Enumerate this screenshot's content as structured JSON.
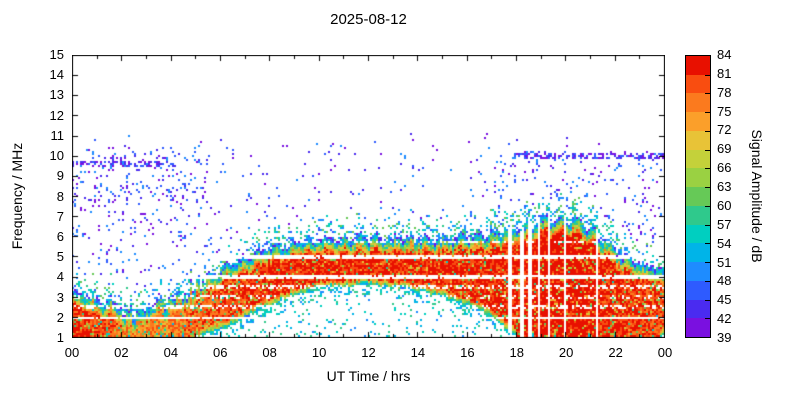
{
  "title": "2025-08-12",
  "colorbar": {
    "label": "Signal Amplitude / dB",
    "segment_colors_bottom_to_top": [
      "#7a10e0",
      "#4a2bf0",
      "#2e5bff",
      "#1e8cff",
      "#00b4e8",
      "#00cfc0",
      "#2fc98c",
      "#66c957",
      "#9ad142",
      "#c4d13a",
      "#e8c337",
      "#fb9f2a",
      "#fb7a1e",
      "#f94d10",
      "#e81000"
    ]
  },
  "chart_data": {
    "type": "heatmap",
    "title": "2025-08-12",
    "xlabel": "UT Time / hrs",
    "ylabel": "Frequency / MHz",
    "xlim": [
      0,
      24
    ],
    "ylim": [
      1,
      15
    ],
    "x_tick_labels": [
      "00",
      "02",
      "04",
      "06",
      "08",
      "10",
      "12",
      "14",
      "16",
      "18",
      "20",
      "22",
      "00"
    ],
    "y_tick_labels": [
      "1",
      "2",
      "3",
      "4",
      "5",
      "6",
      "7",
      "8",
      "9",
      "10",
      "11",
      "12",
      "13",
      "14",
      "15"
    ],
    "colorbar_label": "Signal Amplitude / dB",
    "colorbar_ticks": [
      39,
      42,
      45,
      48,
      51,
      54,
      57,
      60,
      63,
      66,
      69,
      72,
      75,
      78,
      81,
      84
    ],
    "band_top_mhz": {
      "t": [
        0,
        0.8,
        1.6,
        2.4,
        3.2,
        4,
        5,
        6,
        7,
        8,
        9,
        10,
        11,
        12,
        13,
        14,
        15,
        16,
        17,
        17.8,
        18.6,
        19.2,
        19.8,
        20.5,
        21,
        21.6,
        22.3,
        23,
        24
      ],
      "f": [
        3.4,
        3.1,
        2.7,
        2.3,
        2.6,
        2.9,
        3.6,
        4.4,
        5.0,
        5.5,
        5.7,
        5.9,
        6.0,
        6.0,
        5.9,
        6.0,
        5.9,
        6.1,
        6.2,
        6.4,
        6.6,
        6.9,
        7.0,
        6.8,
        6.4,
        5.8,
        5.1,
        4.7,
        4.4
      ]
    },
    "band_bottom_mhz": {
      "t": [
        0,
        5,
        6,
        7,
        8,
        9,
        10,
        12,
        13.5,
        15,
        16,
        16.8,
        17.4,
        18,
        24
      ],
      "f": [
        1.0,
        1.0,
        1.4,
        2.0,
        2.6,
        3.1,
        3.4,
        3.6,
        3.4,
        3.0,
        2.6,
        2.2,
        1.6,
        1.0,
        1.0
      ]
    },
    "band_amplitude_db": {
      "t": [
        0,
        1.5,
        2.2,
        3,
        4,
        5,
        6,
        8,
        12,
        16,
        18,
        19,
        20.5,
        21.5,
        22.5,
        24
      ],
      "db": [
        82,
        80,
        76,
        75,
        76,
        78,
        80,
        82,
        82,
        82,
        82,
        84,
        84,
        82,
        81,
        80
      ]
    },
    "white_lines_mhz": [
      {
        "f": 2.0,
        "p": 0.95
      },
      {
        "f": 2.5,
        "p": 0.5
      },
      {
        "f": 3.0,
        "p": 0.35
      },
      {
        "f": 3.5,
        "p": 0.5
      },
      {
        "f": 4.0,
        "p": 0.9
      },
      {
        "f": 5.0,
        "p": 0.9
      },
      {
        "f": 5.75,
        "p": 0.4
      }
    ],
    "data_gaps_t": [
      [
        17.68,
        17.8
      ],
      [
        18.12,
        18.26
      ],
      [
        18.48,
        18.62
      ],
      [
        18.86,
        18.98
      ],
      [
        19.26,
        19.34
      ],
      [
        19.9,
        19.98
      ],
      [
        20.52,
        20.6
      ],
      [
        21.2,
        21.26
      ]
    ],
    "noise": {
      "background_density": 0.018,
      "fringe_density": 0.26,
      "fringe_width_mhz": 1.3,
      "upper_cutoff_mhz": 10.4,
      "morning_cluster": {
        "t": [
          0,
          5.6
        ],
        "f": [
          7.7,
          10.3
        ],
        "density": 0.1
      },
      "morning_low": {
        "t": [
          0,
          5.6
        ],
        "f_below": 7.7,
        "density": 0.03
      },
      "evening_cluster": {
        "t": [
          17,
          24
        ],
        "f": [
          5.5,
          10.25
        ],
        "density": 0.055
      },
      "line_10mhz": {
        "f": [
          9.9,
          10.2
        ],
        "t_start": 17.9,
        "density": 0.55
      },
      "morning_line": {
        "f": [
          9.45,
          9.75
        ],
        "t_end": 4.2,
        "density": 0.35
      },
      "below_band_density": 0.07,
      "below_band_edge_density": 0.3
    }
  }
}
